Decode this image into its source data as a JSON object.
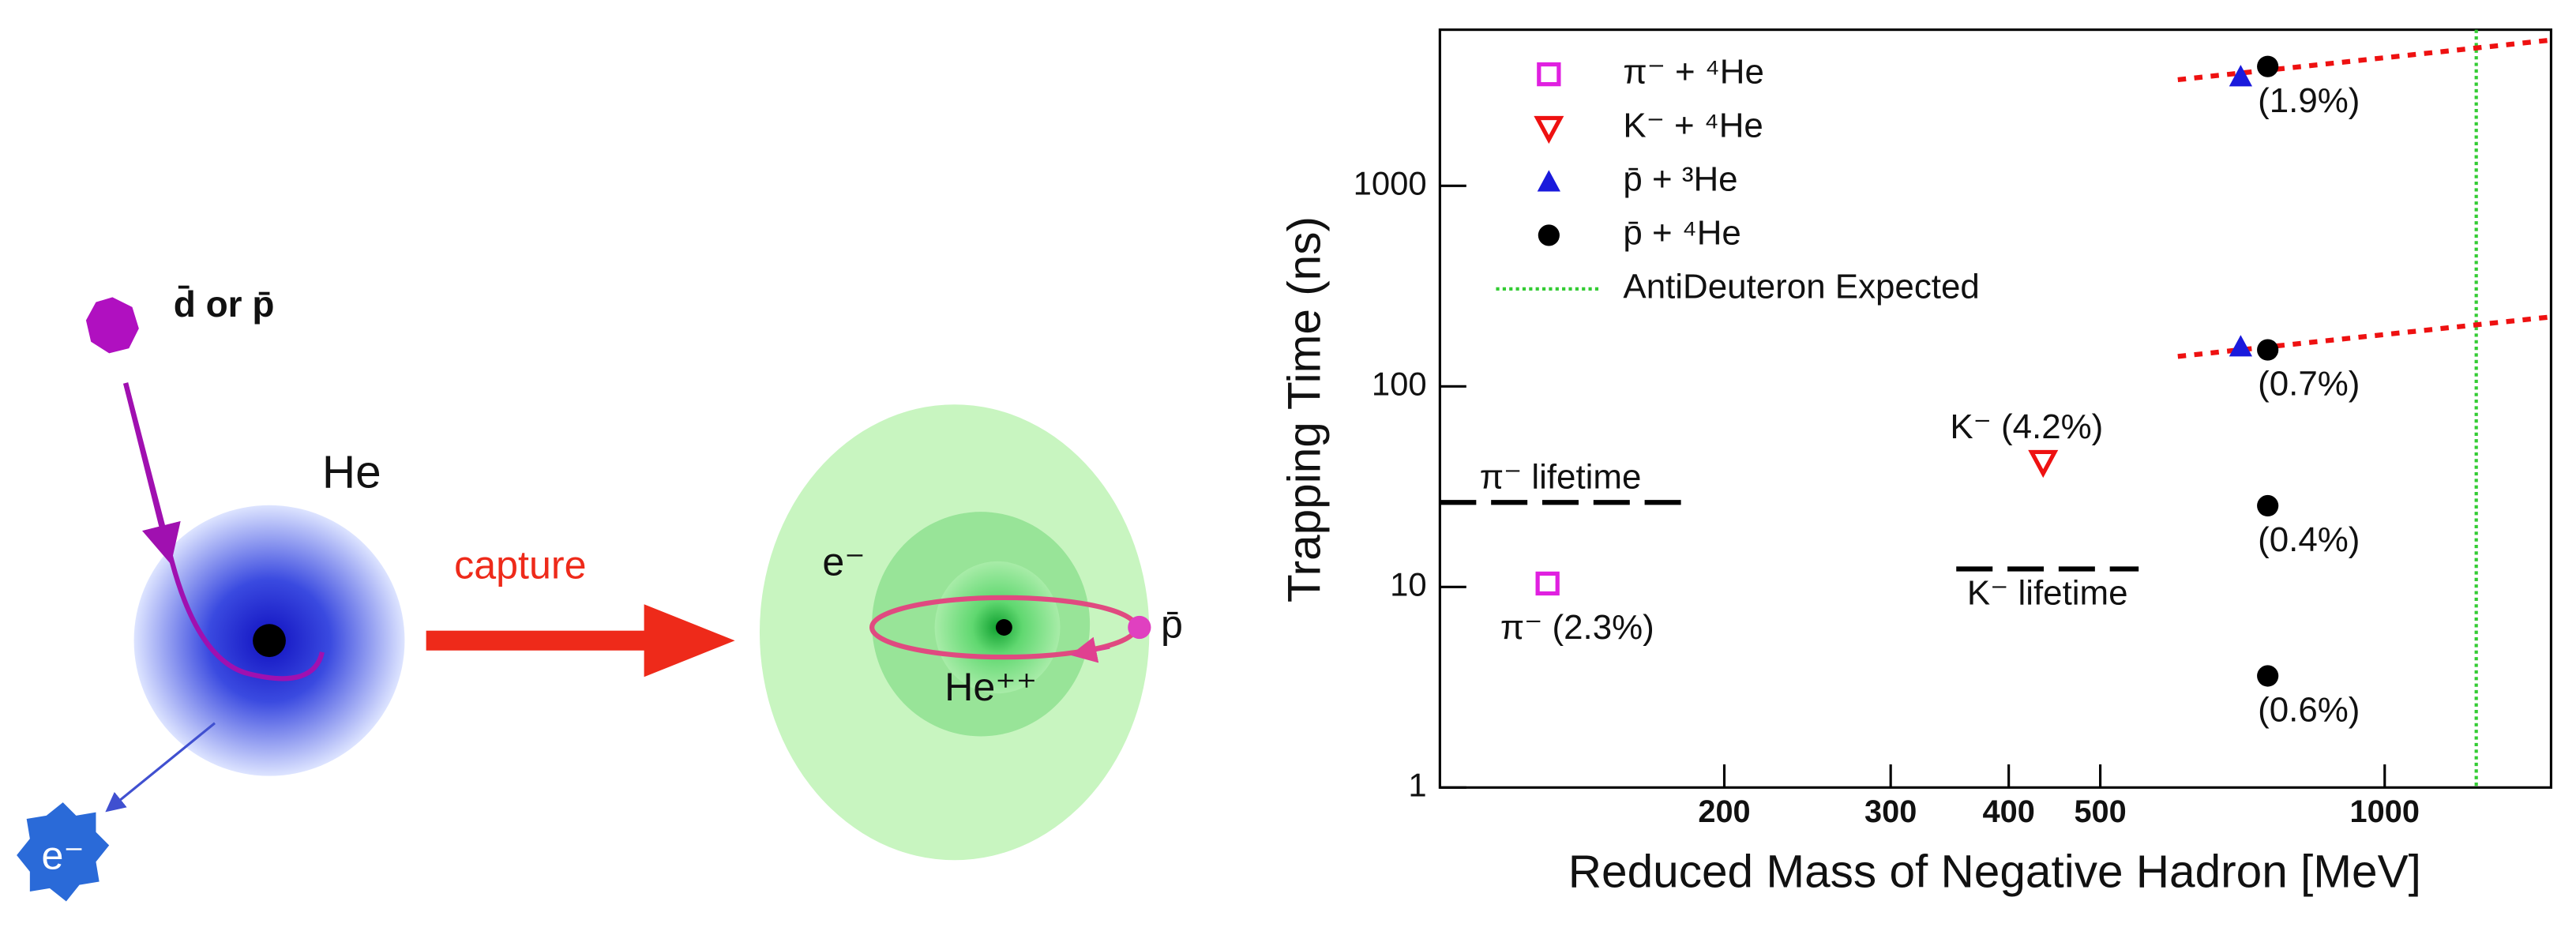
{
  "diagram": {
    "projectile_label": "d̄ or p̄",
    "atom_label": "He",
    "arrow_label": "capture",
    "emitted_label": "e⁻",
    "electron_label": "e⁻",
    "nucleus_label": "He⁺⁺",
    "orbit_label": "p̄"
  },
  "chart_data": {
    "type": "scatter",
    "x_label": "Reduced Mass of Negative Hadron [MeV]",
    "y_label": "Trapping Time (ns)",
    "xscale": "log",
    "yscale": "log",
    "xlim": [
      100,
      1500
    ],
    "ylim": [
      1,
      6000
    ],
    "xticks": [
      200,
      300,
      400,
      500,
      1000
    ],
    "yticks": [
      1,
      10,
      100,
      1000
    ],
    "legend": "upper left",
    "series": [
      {
        "name": "π⁻ + ⁴He",
        "color": "#e020e0",
        "marker": "square-open",
        "x": [
          130
        ],
        "values": [
          10.4
        ],
        "labels": [
          "π⁻ (2.3%)"
        ]
      },
      {
        "name": "K⁻ + ⁴He",
        "color": "#ee1111",
        "marker": "triangle-down-open",
        "x": [
          435
        ],
        "values": [
          42
        ],
        "labels": [
          "K⁻ (4.2%)"
        ]
      },
      {
        "name": "p̄ + ³He",
        "color": "#1a1adc",
        "marker": "triangle-up",
        "x": [
          704,
          704
        ],
        "values": [
          3510,
          158
        ],
        "labels": [
          null,
          null
        ]
      },
      {
        "name": "p̄ + ⁴He",
        "color": "#000000",
        "marker": "circle",
        "x": [
          752,
          752,
          752,
          752
        ],
        "values": [
          3935,
          152,
          25.4,
          3.6
        ],
        "labels": [
          "(1.9%)",
          "(0.7%)",
          "(0.4%)",
          "(0.6%)"
        ]
      }
    ],
    "fit_lines": [
      {
        "color": "#ee1111",
        "x": [
          604,
          1500
        ],
        "values": [
          3380,
          5330
        ]
      },
      {
        "color": "#ee1111",
        "x": [
          604,
          1500
        ],
        "values": [
          141,
          222
        ]
      }
    ],
    "reference_lines": [
      {
        "label": "π⁻ lifetime",
        "x": [
          100,
          180
        ],
        "values": [
          26.4,
          26.4
        ]
      },
      {
        "label": "K⁻ lifetime",
        "x": [
          352,
          549
        ],
        "values": [
          12.3,
          12.3
        ]
      }
    ],
    "vline": {
      "name": "AntiDeuteron Expected",
      "x": 1250,
      "color": "#33cc33"
    }
  }
}
